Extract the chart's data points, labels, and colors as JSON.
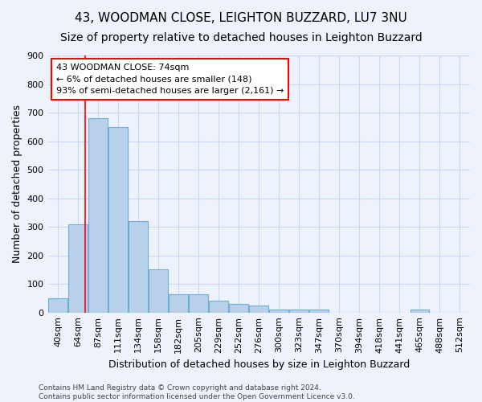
{
  "title": "43, WOODMAN CLOSE, LEIGHTON BUZZARD, LU7 3NU",
  "subtitle": "Size of property relative to detached houses in Leighton Buzzard",
  "xlabel": "Distribution of detached houses by size in Leighton Buzzard",
  "ylabel": "Number of detached properties",
  "footer": "Contains HM Land Registry data © Crown copyright and database right 2024.\nContains public sector information licensed under the Open Government Licence v3.0.",
  "bar_labels": [
    "40sqm",
    "64sqm",
    "87sqm",
    "111sqm",
    "134sqm",
    "158sqm",
    "182sqm",
    "205sqm",
    "229sqm",
    "252sqm",
    "276sqm",
    "300sqm",
    "323sqm",
    "347sqm",
    "370sqm",
    "394sqm",
    "418sqm",
    "441sqm",
    "465sqm",
    "488sqm",
    "512sqm"
  ],
  "bar_values": [
    50,
    310,
    680,
    650,
    320,
    150,
    65,
    65,
    40,
    30,
    25,
    10,
    10,
    10,
    0,
    0,
    0,
    0,
    10,
    0,
    0
  ],
  "bar_color": "#b8d0ea",
  "bar_edge_color": "#6baed6",
  "ylim": [
    0,
    900
  ],
  "yticks": [
    0,
    100,
    200,
    300,
    400,
    500,
    600,
    700,
    800,
    900
  ],
  "grid_color": "#c8d8f0",
  "background_color": "#eef2fb",
  "annotation_line1": "43 WOODMAN CLOSE: 74sqm",
  "annotation_line2": "← 6% of detached houses are smaller (148)",
  "annotation_line3": "93% of semi-detached houses are larger (2,161) →",
  "property_line_x": 1.35,
  "title_fontsize": 11,
  "subtitle_fontsize": 10,
  "tick_fontsize": 8,
  "annotation_fontsize": 8,
  "ylabel_fontsize": 9,
  "xlabel_fontsize": 9,
  "footer_fontsize": 6.5
}
